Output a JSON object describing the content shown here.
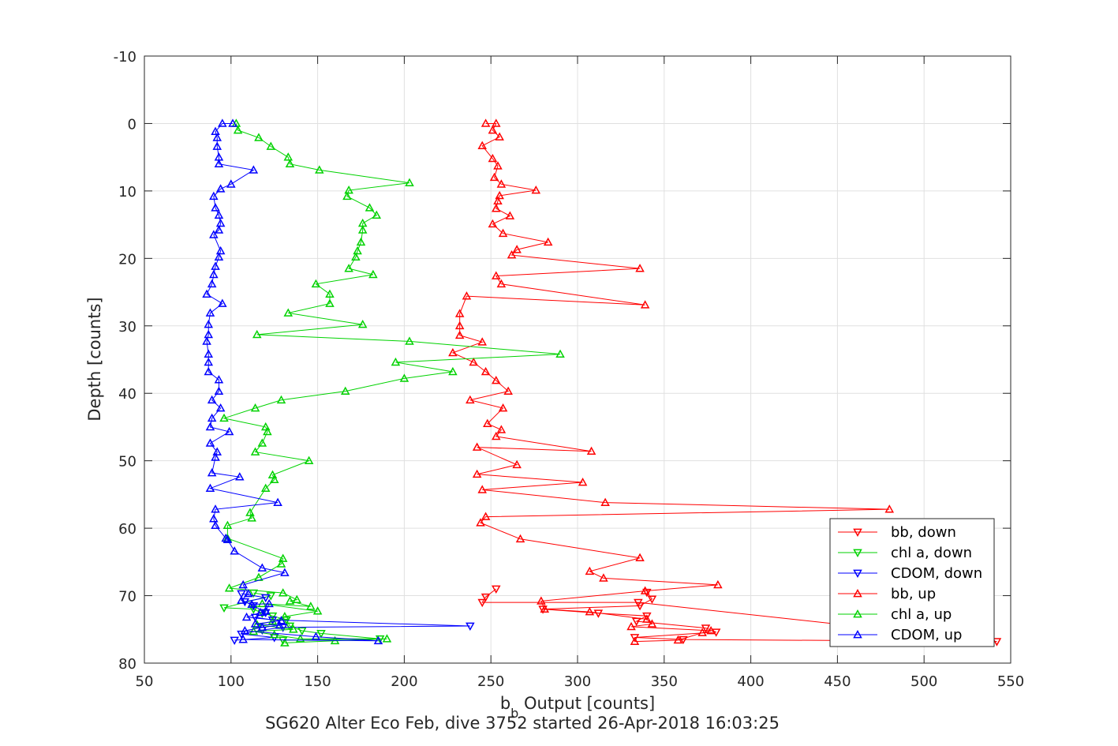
{
  "chart_data": {
    "type": "line",
    "xlabel_main": "b",
    "xlabel_sub": "b",
    "xlabel_rest": " Output [counts]",
    "ylabel": "Depth [counts]",
    "caption": "SG620 Alter Eco Feb, dive 3752 started 26-Apr-2018 16:03:25",
    "xlim": [
      50,
      550
    ],
    "ylim": [
      -10,
      80
    ],
    "y_reversed": true,
    "grid": true,
    "legend_position": "bottom-right",
    "xticks": [
      "50",
      "100",
      "150",
      "200",
      "250",
      "300",
      "350",
      "400",
      "450",
      "500",
      "550"
    ],
    "yticks": [
      "-10",
      "0",
      "10",
      "20",
      "30",
      "40",
      "50",
      "60",
      "70",
      "80"
    ],
    "xtick_values": [
      50,
      100,
      150,
      200,
      250,
      300,
      350,
      400,
      450,
      500,
      550
    ],
    "ytick_values": [
      -10,
      0,
      10,
      20,
      30,
      40,
      50,
      60,
      70,
      80
    ],
    "series": [
      {
        "name": "bb, down",
        "color": "#ff0000",
        "marker": "triangle-down",
        "points": [
          [
            253,
            69.0
          ],
          [
            247,
            70.2
          ],
          [
            245,
            71.0
          ],
          [
            335,
            71.0
          ],
          [
            542,
            76.8
          ],
          [
            361,
            76.5
          ],
          [
            333,
            76.2
          ],
          [
            380,
            75.4
          ],
          [
            374,
            74.8
          ],
          [
            334,
            73.8
          ],
          [
            340,
            73.0
          ],
          [
            312,
            72.6
          ],
          [
            280,
            72.0
          ],
          [
            336,
            71.5
          ],
          [
            343,
            70.5
          ],
          [
            340,
            69.5
          ]
        ]
      },
      {
        "name": "chl a, down",
        "color": "#00d200",
        "marker": "triangle-down",
        "points": [
          [
            113,
            69.6
          ],
          [
            123,
            70.0
          ],
          [
            96,
            71.8
          ],
          [
            113,
            72.0
          ],
          [
            118,
            72.6
          ],
          [
            124,
            73.0
          ],
          [
            132,
            73.6
          ],
          [
            134,
            74.5
          ],
          [
            141,
            75.2
          ],
          [
            152,
            75.6
          ],
          [
            186,
            76.4
          ],
          [
            130,
            76.6
          ]
        ]
      },
      {
        "name": "CDOM, down",
        "color": "#0000ff",
        "marker": "triangle-down",
        "points": [
          [
            106,
            69.7
          ],
          [
            120,
            70.3
          ],
          [
            108,
            70.9
          ],
          [
            113,
            71.5
          ],
          [
            120,
            72.5
          ],
          [
            114,
            73.2
          ],
          [
            124,
            73.6
          ],
          [
            238,
            74.5
          ],
          [
            130,
            74.7
          ],
          [
            118,
            75.1
          ],
          [
            106,
            75.7
          ],
          [
            125,
            76.2
          ],
          [
            102,
            76.6
          ]
        ]
      },
      {
        "name": "bb, up",
        "color": "#ff0000",
        "marker": "triangle-up",
        "points": [
          [
            333,
            76.8
          ],
          [
            358,
            76.6
          ],
          [
            372,
            75.5
          ],
          [
            377,
            75.2
          ],
          [
            331,
            74.6
          ],
          [
            343,
            74.2
          ],
          [
            340,
            73.5
          ],
          [
            307,
            72.4
          ],
          [
            281,
            72.0
          ],
          [
            279,
            70.8
          ],
          [
            339,
            69.3
          ],
          [
            381,
            68.4
          ],
          [
            315,
            67.4
          ],
          [
            307,
            66.4
          ],
          [
            336,
            64.4
          ],
          [
            267,
            61.6
          ],
          [
            244,
            59.2
          ],
          [
            247,
            58.3
          ],
          [
            480,
            57.2
          ],
          [
            316,
            56.2
          ],
          [
            245,
            54.3
          ],
          [
            303,
            53.2
          ],
          [
            242,
            52.0
          ],
          [
            265,
            50.6
          ],
          [
            242,
            48.0
          ],
          [
            308,
            48.6
          ],
          [
            253,
            46.4
          ],
          [
            256,
            45.4
          ],
          [
            248,
            44.5
          ],
          [
            257,
            42.2
          ],
          [
            238,
            41.0
          ],
          [
            260,
            39.7
          ],
          [
            253,
            38.1
          ],
          [
            247,
            36.8
          ],
          [
            240,
            35.4
          ],
          [
            228,
            34.0
          ],
          [
            245,
            32.4
          ],
          [
            232,
            31.4
          ],
          [
            232,
            30.0
          ],
          [
            232,
            28.2
          ],
          [
            236,
            25.6
          ],
          [
            339,
            26.9
          ],
          [
            256,
            23.8
          ],
          [
            253,
            22.6
          ],
          [
            336,
            21.5
          ],
          [
            262,
            19.5
          ],
          [
            265,
            18.7
          ],
          [
            283,
            17.6
          ],
          [
            257,
            16.3
          ],
          [
            251,
            14.9
          ],
          [
            261,
            13.7
          ],
          [
            253,
            12.6
          ],
          [
            254,
            11.5
          ],
          [
            255,
            10.7
          ],
          [
            276,
            9.9
          ],
          [
            256,
            9.0
          ],
          [
            252,
            8.0
          ],
          [
            254,
            6.3
          ],
          [
            251,
            5.2
          ],
          [
            245,
            3.3
          ],
          [
            255,
            2.0
          ],
          [
            251,
            1.0
          ],
          [
            253,
            0
          ],
          [
            247,
            0
          ]
        ]
      },
      {
        "name": "chl a, up",
        "color": "#00d200",
        "marker": "triangle-up",
        "points": [
          [
            103,
            0
          ],
          [
            104,
            1.0
          ],
          [
            116,
            2.1
          ],
          [
            123,
            3.4
          ],
          [
            133,
            5.0
          ],
          [
            134,
            6.0
          ],
          [
            151,
            6.9
          ],
          [
            203,
            8.8
          ],
          [
            168,
            9.9
          ],
          [
            167,
            10.8
          ],
          [
            180,
            12.5
          ],
          [
            184,
            13.6
          ],
          [
            176,
            14.8
          ],
          [
            176,
            15.8
          ],
          [
            175,
            17.6
          ],
          [
            173,
            18.9
          ],
          [
            172,
            19.8
          ],
          [
            168,
            21.5
          ],
          [
            182,
            22.4
          ],
          [
            149,
            23.8
          ],
          [
            157,
            25.3
          ],
          [
            157,
            26.7
          ],
          [
            133,
            28.1
          ],
          [
            176,
            29.8
          ],
          [
            115,
            31.3
          ],
          [
            203,
            32.3
          ],
          [
            290,
            34.2
          ],
          [
            195,
            35.4
          ],
          [
            228,
            36.8
          ],
          [
            200,
            37.8
          ],
          [
            166,
            39.7
          ],
          [
            129,
            41.0
          ],
          [
            114,
            42.2
          ],
          [
            96,
            43.7
          ],
          [
            120,
            45.0
          ],
          [
            121,
            45.7
          ],
          [
            118,
            47.4
          ],
          [
            114,
            48.7
          ],
          [
            145,
            50.0
          ],
          [
            124,
            52.1
          ],
          [
            125,
            52.8
          ],
          [
            120,
            54.1
          ],
          [
            111,
            57.7
          ],
          [
            112,
            58.5
          ],
          [
            98,
            59.6
          ],
          [
            98,
            61.5
          ],
          [
            130,
            64.5
          ],
          [
            129,
            65.3
          ],
          [
            116,
            67.3
          ],
          [
            99,
            68.9
          ],
          [
            130,
            69.6
          ],
          [
            138,
            70.6
          ],
          [
            134,
            70.8
          ],
          [
            146,
            71.6
          ],
          [
            118,
            71.2
          ],
          [
            150,
            72.3
          ],
          [
            131,
            73.1
          ],
          [
            124,
            73.8
          ],
          [
            115,
            74.3
          ],
          [
            136,
            75.0
          ],
          [
            113,
            75.3
          ],
          [
            125,
            75.8
          ],
          [
            140,
            76.4
          ],
          [
            190,
            76.4
          ],
          [
            160,
            76.7
          ],
          [
            131,
            77.0
          ]
        ]
      },
      {
        "name": "CDOM, up",
        "color": "#0000ff",
        "marker": "triangle-up",
        "points": [
          [
            101,
            0
          ],
          [
            95,
            0
          ],
          [
            91,
            1.2
          ],
          [
            92,
            2.1
          ],
          [
            92,
            3.4
          ],
          [
            93,
            5.0
          ],
          [
            93,
            6.0
          ],
          [
            113,
            6.9
          ],
          [
            100,
            9.0
          ],
          [
            94,
            9.7
          ],
          [
            90,
            10.8
          ],
          [
            91,
            12.5
          ],
          [
            93,
            13.6
          ],
          [
            94,
            14.8
          ],
          [
            93,
            15.8
          ],
          [
            90,
            16.5
          ],
          [
            94,
            18.9
          ],
          [
            93,
            19.8
          ],
          [
            91,
            21.2
          ],
          [
            90,
            22.4
          ],
          [
            89,
            23.8
          ],
          [
            86,
            25.3
          ],
          [
            95,
            26.7
          ],
          [
            88,
            28.1
          ],
          [
            87,
            29.8
          ],
          [
            87,
            31.3
          ],
          [
            86,
            32.3
          ],
          [
            87,
            34.2
          ],
          [
            87,
            35.4
          ],
          [
            87,
            36.8
          ],
          [
            93,
            38.0
          ],
          [
            93,
            39.7
          ],
          [
            89,
            41.0
          ],
          [
            94,
            42.2
          ],
          [
            89,
            43.7
          ],
          [
            88,
            45.0
          ],
          [
            99,
            45.7
          ],
          [
            88,
            47.4
          ],
          [
            92,
            48.7
          ],
          [
            91,
            49.5
          ],
          [
            89,
            51.8
          ],
          [
            105,
            52.4
          ],
          [
            88,
            54.1
          ],
          [
            127,
            56.2
          ],
          [
            91,
            57.2
          ],
          [
            90,
            58.6
          ],
          [
            91,
            59.6
          ],
          [
            97,
            61.5
          ],
          [
            98,
            61.7
          ],
          [
            102,
            63.4
          ],
          [
            118,
            65.9
          ],
          [
            131,
            66.6
          ],
          [
            107,
            68.4
          ],
          [
            110,
            69.7
          ],
          [
            106,
            70.7
          ],
          [
            112,
            71.3
          ],
          [
            122,
            71.2
          ],
          [
            120,
            72.3
          ],
          [
            117,
            72.5
          ],
          [
            109,
            73.2
          ],
          [
            129,
            73.7
          ],
          [
            114,
            74.2
          ],
          [
            128,
            74.4
          ],
          [
            118,
            74.7
          ],
          [
            108,
            75.2
          ],
          [
            149,
            76.1
          ],
          [
            185,
            76.7
          ],
          [
            107,
            76.5
          ]
        ]
      }
    ]
  }
}
